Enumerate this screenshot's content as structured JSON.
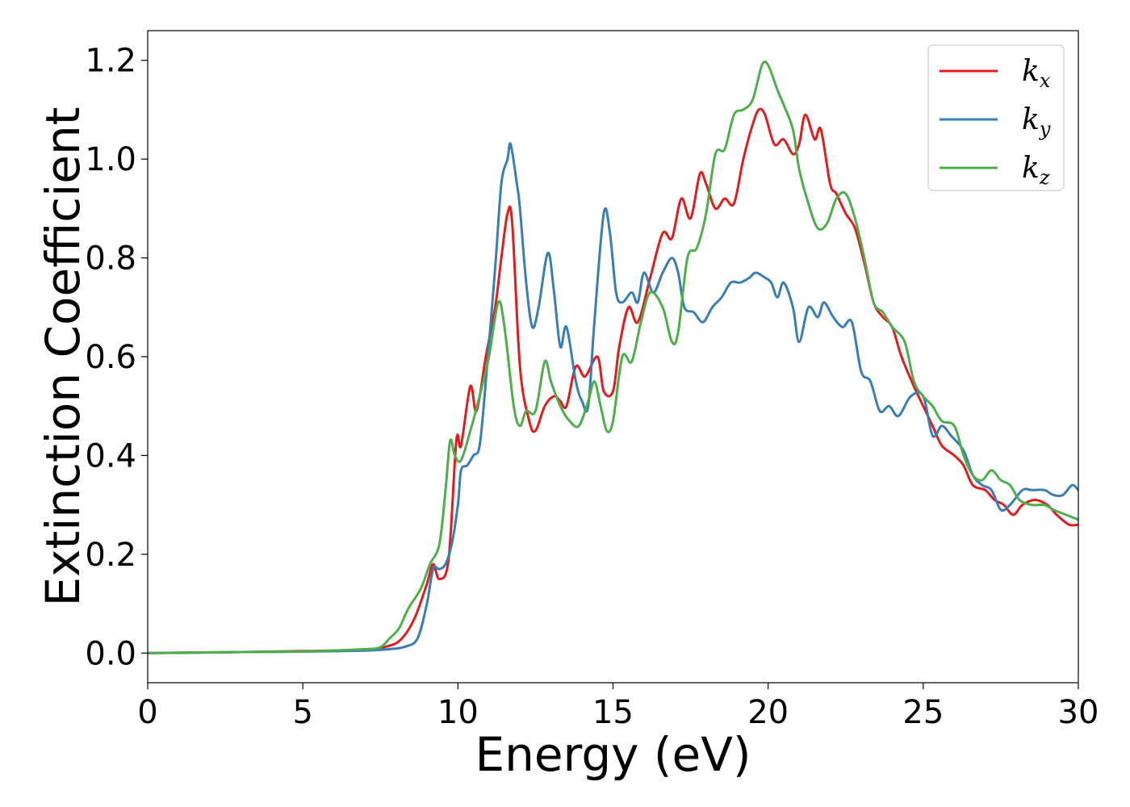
{
  "chart_data": {
    "type": "line",
    "title": "",
    "xlabel": "Energy (eV)",
    "ylabel": "Extinction Coefficient",
    "xlim": [
      0,
      30
    ],
    "ylim": [
      -0.06,
      1.26
    ],
    "xticks": [
      0,
      5,
      10,
      15,
      20,
      25,
      30
    ],
    "yticks": [
      0.0,
      0.2,
      0.4,
      0.6,
      0.8,
      1.0,
      1.2
    ],
    "xtick_labels": [
      "0",
      "5",
      "10",
      "15",
      "20",
      "25",
      "30"
    ],
    "ytick_labels": [
      "0.0",
      "0.2",
      "0.4",
      "0.6",
      "0.8",
      "1.0",
      "1.2"
    ],
    "grid": false,
    "legend_position": "top-right",
    "series": [
      {
        "name": "k",
        "subscript": "x",
        "color": "#e41a1c",
        "points": [
          [
            0,
            0
          ],
          [
            3,
            0.002
          ],
          [
            5,
            0.004
          ],
          [
            7,
            0.007
          ],
          [
            7.8,
            0.015
          ],
          [
            8.2,
            0.03
          ],
          [
            8.6,
            0.07
          ],
          [
            9.0,
            0.14
          ],
          [
            9.2,
            0.18
          ],
          [
            9.4,
            0.15
          ],
          [
            9.7,
            0.19
          ],
          [
            9.95,
            0.43
          ],
          [
            10.1,
            0.42
          ],
          [
            10.4,
            0.54
          ],
          [
            10.6,
            0.49
          ],
          [
            10.9,
            0.6
          ],
          [
            11.2,
            0.7
          ],
          [
            11.4,
            0.8
          ],
          [
            11.6,
            0.89
          ],
          [
            11.75,
            0.87
          ],
          [
            12.0,
            0.58
          ],
          [
            12.3,
            0.47
          ],
          [
            12.5,
            0.45
          ],
          [
            12.8,
            0.5
          ],
          [
            13.1,
            0.52
          ],
          [
            13.3,
            0.51
          ],
          [
            13.5,
            0.5
          ],
          [
            13.8,
            0.58
          ],
          [
            14.1,
            0.56
          ],
          [
            14.5,
            0.6
          ],
          [
            14.7,
            0.53
          ],
          [
            15.0,
            0.53
          ],
          [
            15.2,
            0.62
          ],
          [
            15.5,
            0.7
          ],
          [
            15.8,
            0.67
          ],
          [
            16.2,
            0.76
          ],
          [
            16.6,
            0.85
          ],
          [
            16.9,
            0.84
          ],
          [
            17.2,
            0.92
          ],
          [
            17.5,
            0.88
          ],
          [
            17.8,
            0.97
          ],
          [
            18.0,
            0.95
          ],
          [
            18.3,
            0.9
          ],
          [
            18.6,
            0.92
          ],
          [
            18.9,
            0.91
          ],
          [
            19.2,
            1.0
          ],
          [
            19.5,
            1.07
          ],
          [
            19.7,
            1.1
          ],
          [
            19.9,
            1.09
          ],
          [
            20.2,
            1.03
          ],
          [
            20.5,
            1.04
          ],
          [
            20.8,
            1.01
          ],
          [
            21.0,
            1.03
          ],
          [
            21.2,
            1.09
          ],
          [
            21.5,
            1.04
          ],
          [
            21.7,
            1.06
          ],
          [
            22.0,
            0.95
          ],
          [
            22.2,
            0.93
          ],
          [
            22.5,
            0.89
          ],
          [
            22.8,
            0.86
          ],
          [
            23.1,
            0.79
          ],
          [
            23.4,
            0.71
          ],
          [
            23.7,
            0.68
          ],
          [
            24.0,
            0.66
          ],
          [
            24.3,
            0.6
          ],
          [
            24.7,
            0.54
          ],
          [
            25.0,
            0.5
          ],
          [
            25.3,
            0.46
          ],
          [
            25.6,
            0.42
          ],
          [
            26.0,
            0.4
          ],
          [
            26.3,
            0.38
          ],
          [
            26.6,
            0.34
          ],
          [
            27.0,
            0.33
          ],
          [
            27.3,
            0.31
          ],
          [
            27.6,
            0.3
          ],
          [
            27.9,
            0.28
          ],
          [
            28.2,
            0.3
          ],
          [
            28.6,
            0.31
          ],
          [
            29.0,
            0.3
          ],
          [
            29.3,
            0.28
          ],
          [
            29.7,
            0.26
          ],
          [
            30.0,
            0.26
          ]
        ]
      },
      {
        "name": "k",
        "subscript": "y",
        "color": "#377eb8",
        "points": [
          [
            0,
            0
          ],
          [
            3,
            0.002
          ],
          [
            5,
            0.003
          ],
          [
            7,
            0.005
          ],
          [
            7.8,
            0.008
          ],
          [
            8.3,
            0.013
          ],
          [
            8.7,
            0.03
          ],
          [
            9.0,
            0.1
          ],
          [
            9.2,
            0.17
          ],
          [
            9.4,
            0.17
          ],
          [
            9.6,
            0.18
          ],
          [
            9.8,
            0.22
          ],
          [
            10.0,
            0.3
          ],
          [
            10.1,
            0.37
          ],
          [
            10.3,
            0.38
          ],
          [
            10.5,
            0.4
          ],
          [
            10.7,
            0.42
          ],
          [
            10.9,
            0.55
          ],
          [
            11.2,
            0.78
          ],
          [
            11.4,
            0.95
          ],
          [
            11.6,
            1.0
          ],
          [
            11.7,
            1.03
          ],
          [
            11.9,
            0.95
          ],
          [
            12.0,
            0.9
          ],
          [
            12.2,
            0.75
          ],
          [
            12.4,
            0.66
          ],
          [
            12.6,
            0.7
          ],
          [
            12.9,
            0.81
          ],
          [
            13.1,
            0.73
          ],
          [
            13.3,
            0.62
          ],
          [
            13.5,
            0.66
          ],
          [
            13.8,
            0.55
          ],
          [
            14.0,
            0.51
          ],
          [
            14.2,
            0.5
          ],
          [
            14.4,
            0.67
          ],
          [
            14.7,
            0.89
          ],
          [
            14.9,
            0.85
          ],
          [
            15.1,
            0.73
          ],
          [
            15.3,
            0.71
          ],
          [
            15.6,
            0.73
          ],
          [
            15.8,
            0.71
          ],
          [
            16.0,
            0.77
          ],
          [
            16.3,
            0.73
          ],
          [
            16.6,
            0.77
          ],
          [
            16.9,
            0.8
          ],
          [
            17.1,
            0.77
          ],
          [
            17.3,
            0.7
          ],
          [
            17.6,
            0.69
          ],
          [
            17.9,
            0.67
          ],
          [
            18.2,
            0.7
          ],
          [
            18.5,
            0.72
          ],
          [
            18.8,
            0.75
          ],
          [
            19.1,
            0.75
          ],
          [
            19.4,
            0.76
          ],
          [
            19.6,
            0.77
          ],
          [
            19.9,
            0.76
          ],
          [
            20.1,
            0.75
          ],
          [
            20.3,
            0.72
          ],
          [
            20.5,
            0.75
          ],
          [
            20.8,
            0.7
          ],
          [
            21.0,
            0.63
          ],
          [
            21.3,
            0.7
          ],
          [
            21.6,
            0.68
          ],
          [
            21.8,
            0.71
          ],
          [
            22.1,
            0.68
          ],
          [
            22.4,
            0.66
          ],
          [
            22.7,
            0.67
          ],
          [
            23.0,
            0.57
          ],
          [
            23.3,
            0.55
          ],
          [
            23.6,
            0.49
          ],
          [
            23.9,
            0.5
          ],
          [
            24.2,
            0.48
          ],
          [
            24.6,
            0.52
          ],
          [
            25.0,
            0.52
          ],
          [
            25.3,
            0.44
          ],
          [
            25.6,
            0.46
          ],
          [
            25.9,
            0.44
          ],
          [
            26.3,
            0.41
          ],
          [
            26.6,
            0.36
          ],
          [
            26.9,
            0.34
          ],
          [
            27.2,
            0.33
          ],
          [
            27.5,
            0.29
          ],
          [
            27.8,
            0.3
          ],
          [
            28.2,
            0.33
          ],
          [
            28.5,
            0.33
          ],
          [
            28.9,
            0.33
          ],
          [
            29.2,
            0.32
          ],
          [
            29.5,
            0.32
          ],
          [
            29.8,
            0.34
          ],
          [
            30.0,
            0.33
          ]
        ]
      },
      {
        "name": "k",
        "subscript": "z",
        "color": "#4daf4a",
        "points": [
          [
            0,
            0
          ],
          [
            3,
            0.002
          ],
          [
            5,
            0.003
          ],
          [
            7,
            0.008
          ],
          [
            7.5,
            0.012
          ],
          [
            7.8,
            0.03
          ],
          [
            8.1,
            0.05
          ],
          [
            8.4,
            0.09
          ],
          [
            8.8,
            0.13
          ],
          [
            9.1,
            0.18
          ],
          [
            9.4,
            0.22
          ],
          [
            9.6,
            0.33
          ],
          [
            9.75,
            0.43
          ],
          [
            9.9,
            0.4
          ],
          [
            10.1,
            0.39
          ],
          [
            10.4,
            0.45
          ],
          [
            10.7,
            0.52
          ],
          [
            11.0,
            0.6
          ],
          [
            11.3,
            0.71
          ],
          [
            11.5,
            0.66
          ],
          [
            11.8,
            0.5
          ],
          [
            12.0,
            0.46
          ],
          [
            12.2,
            0.49
          ],
          [
            12.5,
            0.49
          ],
          [
            12.8,
            0.59
          ],
          [
            13.0,
            0.55
          ],
          [
            13.3,
            0.5
          ],
          [
            13.6,
            0.47
          ],
          [
            13.9,
            0.46
          ],
          [
            14.2,
            0.51
          ],
          [
            14.4,
            0.55
          ],
          [
            14.6,
            0.5
          ],
          [
            14.8,
            0.45
          ],
          [
            15.0,
            0.47
          ],
          [
            15.3,
            0.6
          ],
          [
            15.6,
            0.59
          ],
          [
            15.9,
            0.67
          ],
          [
            16.2,
            0.73
          ],
          [
            16.6,
            0.7
          ],
          [
            16.9,
            0.63
          ],
          [
            17.1,
            0.65
          ],
          [
            17.4,
            0.8
          ],
          [
            17.7,
            0.82
          ],
          [
            18.0,
            0.89
          ],
          [
            18.3,
            1.01
          ],
          [
            18.6,
            1.02
          ],
          [
            18.9,
            1.09
          ],
          [
            19.2,
            1.1
          ],
          [
            19.5,
            1.12
          ],
          [
            19.8,
            1.19
          ],
          [
            20.0,
            1.19
          ],
          [
            20.3,
            1.14
          ],
          [
            20.5,
            1.11
          ],
          [
            20.8,
            1.06
          ],
          [
            21.0,
            0.98
          ],
          [
            21.3,
            0.91
          ],
          [
            21.6,
            0.86
          ],
          [
            21.9,
            0.87
          ],
          [
            22.2,
            0.92
          ],
          [
            22.5,
            0.93
          ],
          [
            22.8,
            0.88
          ],
          [
            23.1,
            0.8
          ],
          [
            23.4,
            0.71
          ],
          [
            23.7,
            0.69
          ],
          [
            24.0,
            0.66
          ],
          [
            24.4,
            0.63
          ],
          [
            24.7,
            0.55
          ],
          [
            25.0,
            0.52
          ],
          [
            25.3,
            0.5
          ],
          [
            25.6,
            0.47
          ],
          [
            26.0,
            0.46
          ],
          [
            26.3,
            0.4
          ],
          [
            26.6,
            0.36
          ],
          [
            26.9,
            0.35
          ],
          [
            27.2,
            0.37
          ],
          [
            27.5,
            0.35
          ],
          [
            27.8,
            0.34
          ],
          [
            28.1,
            0.31
          ],
          [
            28.5,
            0.3
          ],
          [
            28.9,
            0.3
          ],
          [
            29.2,
            0.29
          ],
          [
            29.6,
            0.28
          ],
          [
            30.0,
            0.27
          ]
        ]
      }
    ]
  }
}
